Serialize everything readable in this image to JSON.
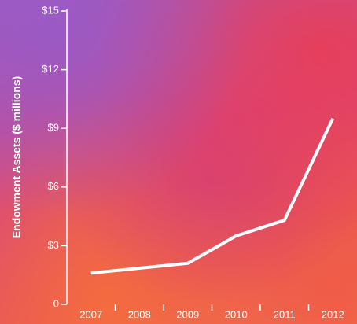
{
  "chart_data": {
    "type": "line",
    "y_label": "Endowment Assets ($ millions)",
    "categories": [
      "2007",
      "2008",
      "2009",
      "2010",
      "2011",
      "2012"
    ],
    "values": [
      1.6,
      1.85,
      2.1,
      3.5,
      4.3,
      9.5
    ],
    "color": "#ffffff",
    "ylim": [
      0,
      15
    ],
    "yticks": [
      0,
      {
        "value": 3,
        "label": "$3"
      },
      {
        "value": 6,
        "label": "$6"
      },
      {
        "value": 9,
        "label": "$9"
      },
      {
        "value": 12,
        "label": "$12"
      },
      {
        "value": 15,
        "label": "$15"
      }
    ]
  }
}
